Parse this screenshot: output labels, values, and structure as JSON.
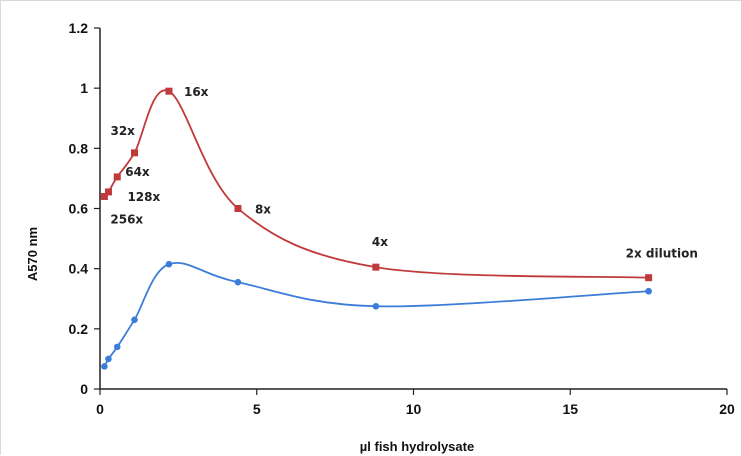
{
  "chart_data": {
    "type": "line",
    "title": "",
    "xlabel": "µl fish hydrolysate",
    "ylabel": "A570 nm",
    "xlim": [
      0,
      20
    ],
    "ylim": [
      0,
      1.2
    ],
    "x_ticks": [
      "0",
      "5",
      "10",
      "15",
      "20"
    ],
    "y_ticks": [
      "0",
      "0.2",
      "0.4",
      "0.6",
      "0.8",
      "1",
      "1.2"
    ],
    "grid": false,
    "legend": "none",
    "series": [
      {
        "color": "#c0393b",
        "marker": "square",
        "points": [
          {
            "x": 0.14,
            "y": 0.64
          },
          {
            "x": 0.27,
            "y": 0.655
          },
          {
            "x": 0.55,
            "y": 0.705
          },
          {
            "x": 1.1,
            "y": 0.785
          },
          {
            "x": 2.2,
            "y": 0.99
          },
          {
            "x": 4.4,
            "y": 0.6
          },
          {
            "x": 8.8,
            "y": 0.405
          },
          {
            "x": 17.5,
            "y": 0.37
          }
        ]
      },
      {
        "color": "#3b7dd8",
        "marker": "circle",
        "points": [
          {
            "x": 0.14,
            "y": 0.075
          },
          {
            "x": 0.27,
            "y": 0.1
          },
          {
            "x": 0.55,
            "y": 0.14
          },
          {
            "x": 1.1,
            "y": 0.23
          },
          {
            "x": 2.2,
            "y": 0.415
          },
          {
            "x": 4.4,
            "y": 0.355
          },
          {
            "x": 8.8,
            "y": 0.275
          },
          {
            "x": 17.5,
            "y": 0.325
          }
        ]
      }
    ],
    "annotations": [
      {
        "text": "256x",
        "x": 0.14,
        "y": 0.64
      },
      {
        "text": "128x",
        "x": 0.27,
        "y": 0.655
      },
      {
        "text": "64x",
        "x": 0.55,
        "y": 0.705
      },
      {
        "text": "32x",
        "x": 1.1,
        "y": 0.785
      },
      {
        "text": "16x",
        "x": 2.2,
        "y": 0.99
      },
      {
        "text": "8x",
        "x": 4.4,
        "y": 0.6
      },
      {
        "text": "4x",
        "x": 8.8,
        "y": 0.405
      },
      {
        "text": "2x dilution",
        "x": 17.5,
        "y": 0.37
      }
    ]
  }
}
